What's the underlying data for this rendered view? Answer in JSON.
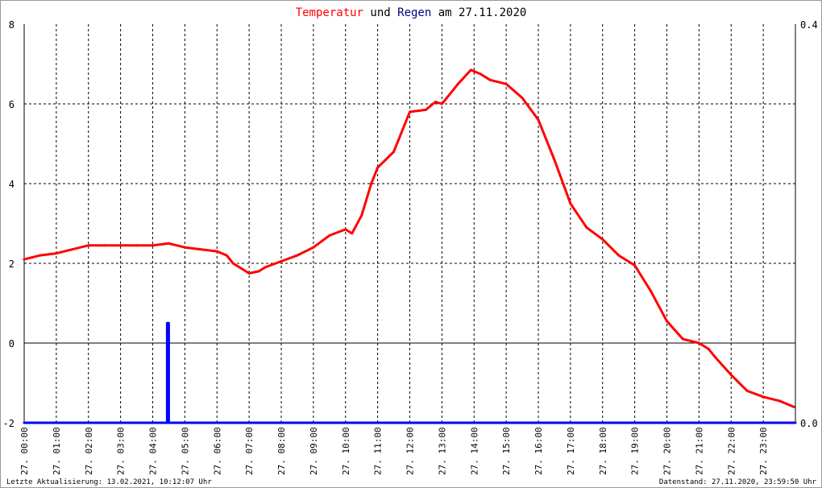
{
  "title": {
    "part1": "Temperatur",
    "part2": " und ",
    "part3": "Regen",
    "part4": " am 27.11.2020",
    "color1": "#ff0000",
    "color3": "#000080"
  },
  "footer": {
    "left": "Letzte Aktualisierung: 13.02.2021, 10:12:07 Uhr",
    "right": "Datenstand: 27.11.2020, 23:59:50 Uhr"
  },
  "chart_data": {
    "type": "line",
    "title": "Temperatur und Regen am 27.11.2020",
    "xlabel": "",
    "ylabel": "",
    "x_range_hours": [
      0,
      24
    ],
    "ylim_left": [
      -2,
      8
    ],
    "ylim_right": [
      0.0,
      0.4
    ],
    "yticks_left": [
      -2,
      0,
      2,
      4,
      6,
      8
    ],
    "yticks_right": [
      "0.0",
      "0.4"
    ],
    "x_tick_labels": [
      "27. 00:00",
      "27. 01:00",
      "27. 02:00",
      "27. 03:00",
      "27. 04:00",
      "27. 05:00",
      "27. 06:00",
      "27. 07:00",
      "27. 08:00",
      "27. 09:00",
      "27. 10:00",
      "27. 11:00",
      "27. 12:00",
      "27. 13:00",
      "27. 14:00",
      "27. 15:00",
      "27. 16:00",
      "27. 17:00",
      "27. 18:00",
      "27. 19:00",
      "27. 20:00",
      "27. 21:00",
      "27. 22:00",
      "27. 23:00"
    ],
    "grid": true,
    "series": [
      {
        "name": "Temperatur",
        "color": "#ff0000",
        "axis": "left",
        "x": [
          0,
          0.25,
          0.5,
          1.0,
          1.5,
          2.0,
          2.5,
          3.0,
          3.5,
          4.0,
          4.5,
          5.0,
          5.5,
          6.0,
          6.3,
          6.5,
          7.0,
          7.3,
          7.5,
          8.0,
          8.5,
          9.0,
          9.5,
          10.0,
          10.2,
          10.5,
          10.8,
          11.0,
          11.5,
          12.0,
          12.5,
          12.8,
          13.0,
          13.5,
          13.9,
          14.2,
          14.5,
          15.0,
          15.5,
          16.0,
          16.5,
          17.0,
          17.5,
          18.0,
          18.5,
          19.0,
          19.5,
          20.0,
          20.5,
          21.0,
          21.3,
          21.5,
          22.0,
          22.5,
          23.0,
          23.5,
          23.95
        ],
        "values": [
          2.1,
          2.15,
          2.2,
          2.25,
          2.35,
          2.45,
          2.45,
          2.45,
          2.45,
          2.45,
          2.5,
          2.4,
          2.35,
          2.3,
          2.2,
          2.0,
          1.75,
          1.8,
          1.9,
          2.05,
          2.2,
          2.4,
          2.7,
          2.85,
          2.75,
          3.2,
          4.0,
          4.4,
          4.8,
          5.8,
          5.85,
          6.05,
          6.0,
          6.5,
          6.85,
          6.75,
          6.6,
          6.5,
          6.15,
          5.6,
          4.6,
          3.5,
          2.9,
          2.6,
          2.2,
          1.95,
          1.3,
          0.55,
          0.1,
          0.0,
          -0.15,
          -0.35,
          -0.8,
          -1.2,
          -1.35,
          -1.45,
          -1.6
        ]
      },
      {
        "name": "Regen",
        "color": "#0000ff",
        "axis": "right",
        "x": [
          0,
          4.45,
          4.45,
          4.5,
          4.5,
          24
        ],
        "values": [
          0.0,
          0.0,
          0.1,
          0.1,
          0.0,
          0.0
        ],
        "peak_value": 0.1,
        "peak_hour": 4.47
      }
    ]
  }
}
